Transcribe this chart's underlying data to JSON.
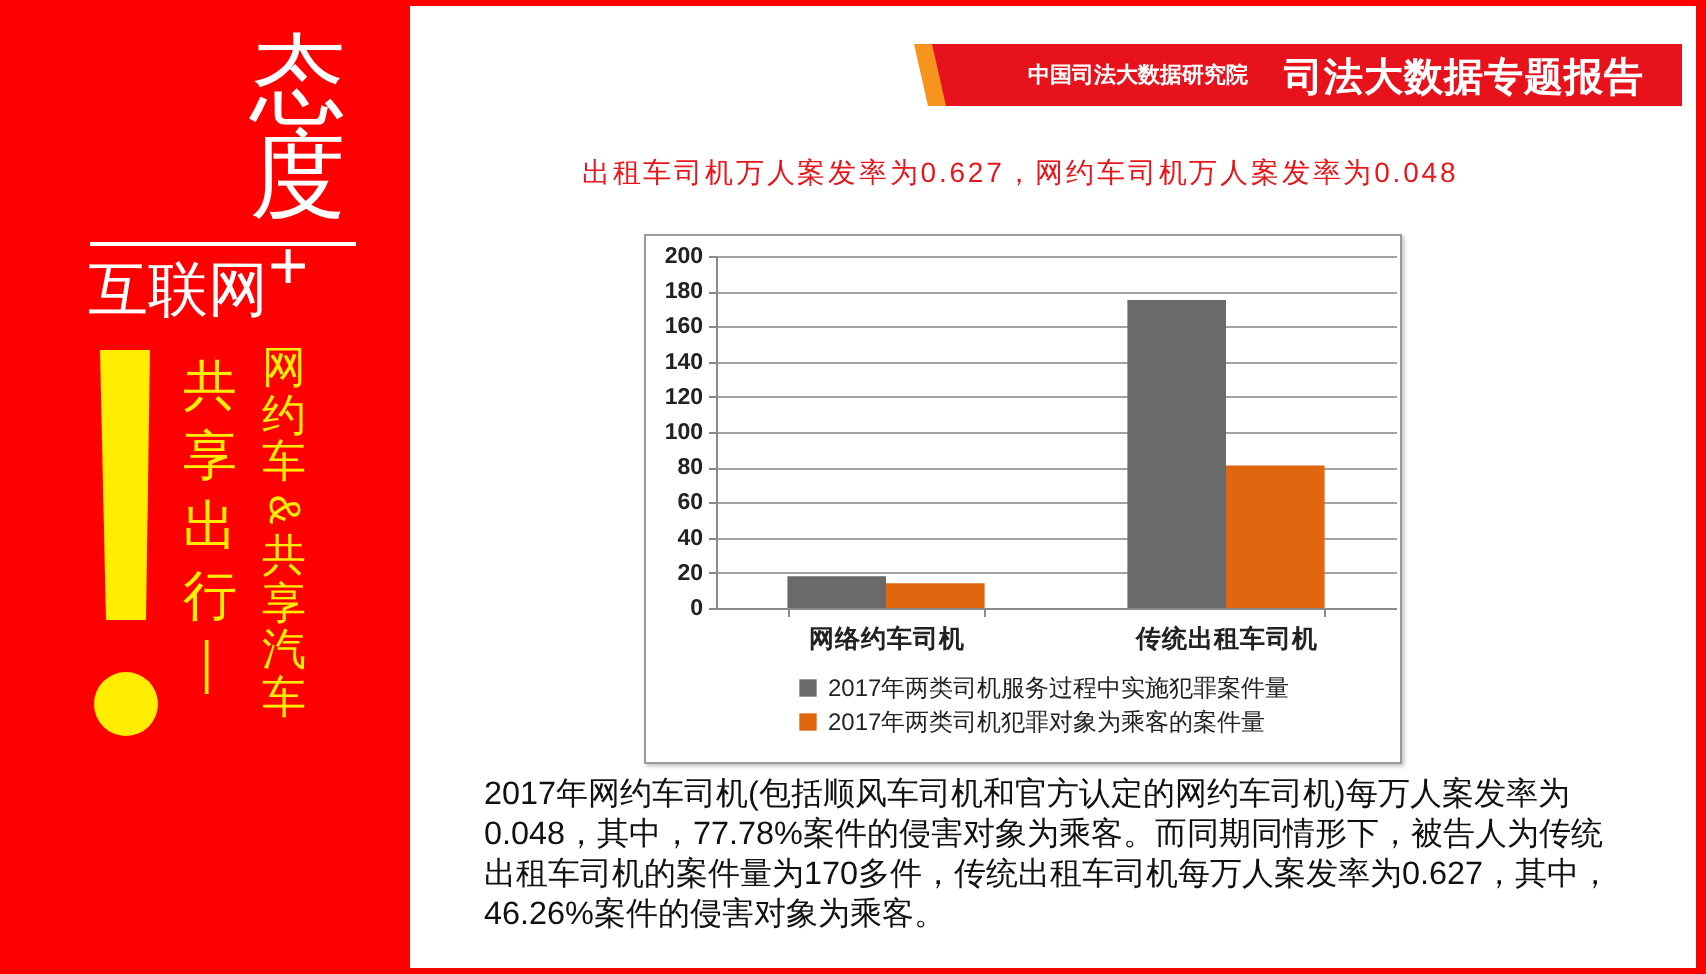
{
  "chart_data": {
    "type": "bar",
    "title": "出租车司机万人案发率为0.627，网约车司机万人案发率为0.048",
    "categories": [
      "网络约车司机",
      "传统出租车司机"
    ],
    "series": [
      {
        "name": "2017年两类司机服务过程中实施犯罪案件量",
        "color": "#6a6a6a",
        "values": [
          18,
          175
        ]
      },
      {
        "name": "2017年两类司机犯罪对象为乘客的案件量",
        "color": "#e2650f",
        "values": [
          14,
          81
        ]
      }
    ],
    "ylim": [
      0,
      200
    ],
    "yticks": [
      0,
      20,
      40,
      60,
      80,
      100,
      120,
      140,
      160,
      180,
      200
    ],
    "grid": "y",
    "legend": "bottom",
    "annotations": [
      "中国司法大数据研究院",
      "司法大数据专题报告",
      "态度",
      "互联网$^{+}$",
      "共享出行—",
      "网约车&共享汽车",
      "2017年网约车司机(包括顺风车司机和官方认定的网约车司机)每万人案发率为0.048，其中，77.78%案件的侵害对象为乘客。而同期同情形下，被告人为传统出租车司机的案件量为170多件，传统出租车司机每万人案发率为0.627，其中，46.26%案件的侵害对象为乘客。"
    ]
  }
}
